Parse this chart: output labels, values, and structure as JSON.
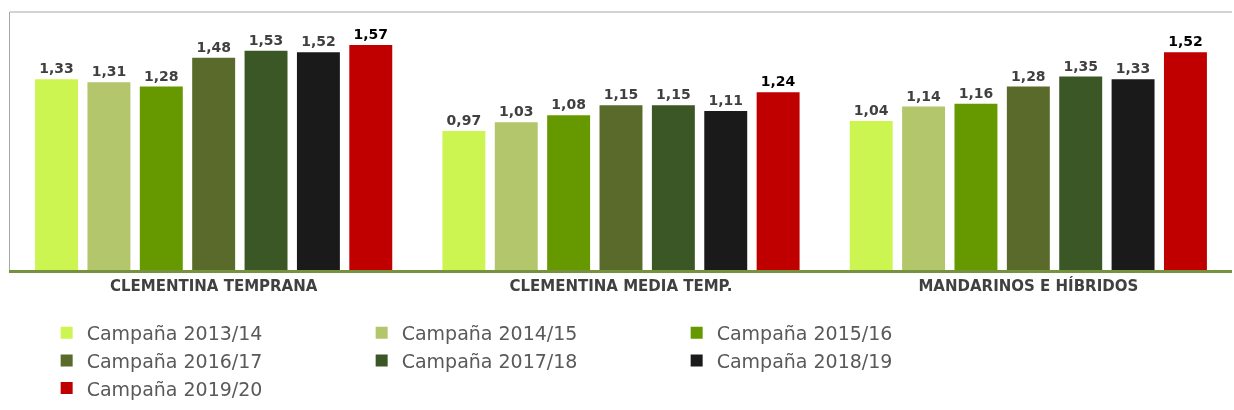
{
  "chart_data": {
    "type": "bar",
    "categories": [
      "CLEMENTINA TEMPRANA",
      "CLEMENTINA MEDIA TEMP.",
      "MANDARINOS E HÍBRIDOS"
    ],
    "series": [
      {
        "name": "Campaña 2013/14",
        "color": "#cdf552",
        "values": [
          1.33,
          0.97,
          1.04
        ],
        "value_labels": [
          "1,33",
          "0,97",
          "1,04"
        ]
      },
      {
        "name": "Campaña 2014/15",
        "color": "#b3c66c",
        "values": [
          1.31,
          1.03,
          1.14
        ],
        "value_labels": [
          "1,31",
          "1,03",
          "1,14"
        ]
      },
      {
        "name": "Campaña 2015/16",
        "color": "#669900",
        "values": [
          1.28,
          1.08,
          1.16
        ],
        "value_labels": [
          "1,28",
          "1,08",
          "1,16"
        ]
      },
      {
        "name": "Campaña 2016/17",
        "color": "#5a6a2b",
        "values": [
          1.48,
          1.15,
          1.28
        ],
        "value_labels": [
          "1,48",
          "1,15",
          "1,28"
        ]
      },
      {
        "name": "Campaña 2017/18",
        "color": "#3b5725",
        "values": [
          1.53,
          1.15,
          1.35
        ],
        "value_labels": [
          "1,53",
          "1,15",
          "1,35"
        ]
      },
      {
        "name": "Campaña 2018/19",
        "color": "#1a1a1a",
        "values": [
          1.52,
          1.11,
          1.33
        ],
        "value_labels": [
          "1,52",
          "1,11",
          "1,33"
        ]
      },
      {
        "name": "Campaña 2019/20",
        "color": "#c00000",
        "values": [
          1.57,
          1.24,
          1.52
        ],
        "value_labels": [
          "1,57",
          "1,24",
          "1,52"
        ]
      }
    ],
    "ylim": [
      0,
      1.8
    ],
    "tick_labels": "x",
    "legend": "bottom"
  }
}
